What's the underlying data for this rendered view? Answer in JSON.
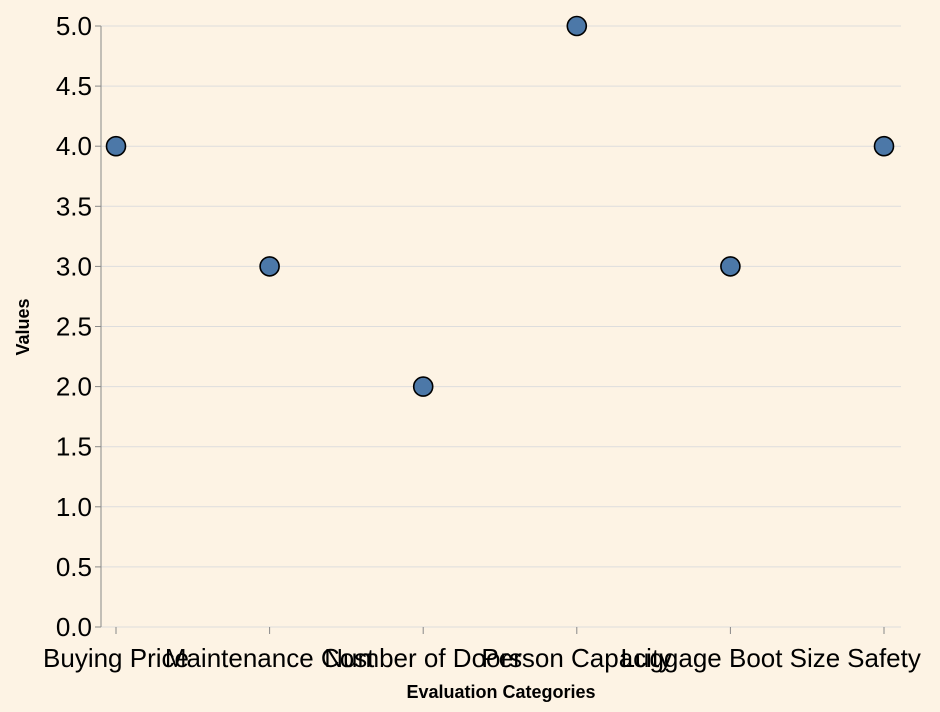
{
  "chart_data": {
    "type": "scatter",
    "title": "",
    "xlabel": "Evaluation Categories",
    "ylabel": "Values",
    "categories": [
      "Buying Price",
      "Maintenance Cost",
      "Number of Doors",
      "Person Capacity",
      "Luggage Boot Size",
      "Safety"
    ],
    "values": [
      4,
      3,
      2,
      5,
      3,
      4
    ],
    "ylim": [
      0,
      5
    ],
    "yticks": [
      "0.0",
      "0.5",
      "1.0",
      "1.5",
      "2.0",
      "2.5",
      "3.0",
      "3.5",
      "4.0",
      "4.5",
      "5.0"
    ],
    "grid": true,
    "legend": "none",
    "colors": {
      "background": "#fdf3e4",
      "point_fill": "#4c78a8",
      "point_stroke": "#000000",
      "grid": "#dddddd",
      "axis": "#888888"
    }
  }
}
